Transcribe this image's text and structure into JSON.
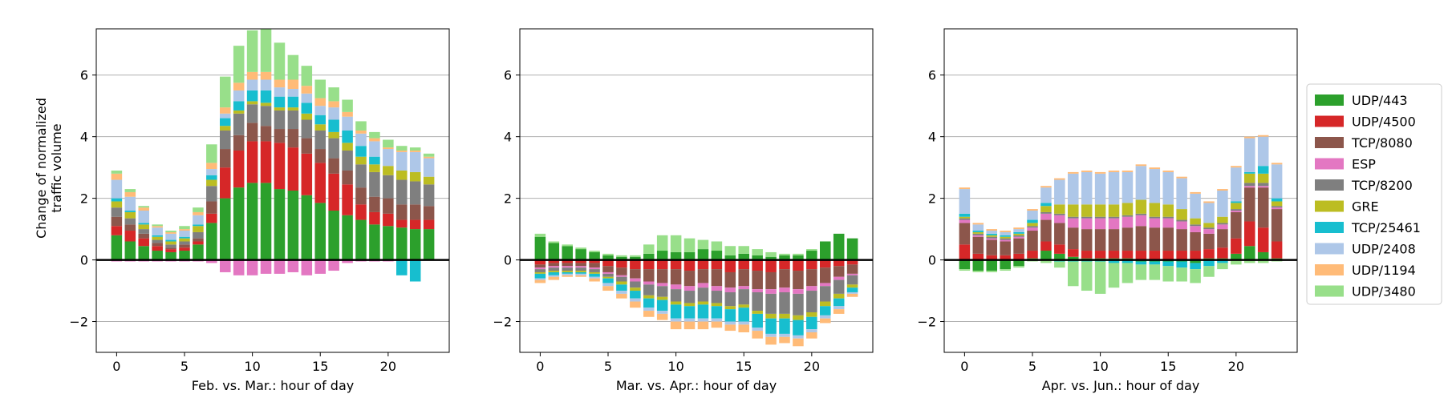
{
  "series_meta": [
    {
      "name": "UDP/443",
      "color": "#2ca02c"
    },
    {
      "name": "UDP/4500",
      "color": "#d62728"
    },
    {
      "name": "TCP/8080",
      "color": "#8c564b"
    },
    {
      "name": "ESP",
      "color": "#e377c2"
    },
    {
      "name": "TCP/8200",
      "color": "#7f7f7f"
    },
    {
      "name": "GRE",
      "color": "#bcbd22"
    },
    {
      "name": "TCP/25461",
      "color": "#17becf"
    },
    {
      "name": "UDP/2408",
      "color": "#aec7e8"
    },
    {
      "name": "UDP/1194",
      "color": "#ffbb78"
    },
    {
      "name": "UDP/3480",
      "color": "#98df8a"
    }
  ],
  "shared_ylabel": "Change of normalized\ntraffic volume",
  "chart_data": [
    {
      "type": "bar",
      "stacked": true,
      "xlabel": "Feb. vs. Mar.: hour of day",
      "ylabel": "Change of normalized traffic volume",
      "x": [
        0,
        1,
        2,
        3,
        4,
        5,
        6,
        7,
        8,
        9,
        10,
        11,
        12,
        13,
        14,
        15,
        16,
        17,
        18,
        19,
        20,
        21,
        22,
        23
      ],
      "xticks": [
        0,
        5,
        10,
        15,
        20
      ],
      "yticks": [
        -2,
        0,
        2,
        4,
        6
      ],
      "ylim": [
        -3,
        7.5
      ],
      "grid": "y",
      "series": [
        {
          "name": "UDP/443",
          "values": [
            0.8,
            0.6,
            0.45,
            0.3,
            0.25,
            0.3,
            0.5,
            1.2,
            2.0,
            2.35,
            2.5,
            2.5,
            2.3,
            2.25,
            2.1,
            1.85,
            1.6,
            1.45,
            1.3,
            1.15,
            1.1,
            1.05,
            1.0,
            1.0
          ]
        },
        {
          "name": "UDP/4500",
          "values": [
            0.3,
            0.35,
            0.25,
            0.15,
            0.1,
            0.1,
            0.1,
            0.3,
            1.0,
            1.2,
            1.35,
            1.35,
            1.5,
            1.4,
            1.35,
            1.3,
            1.2,
            1.0,
            0.5,
            0.4,
            0.4,
            0.25,
            0.3,
            0.3
          ]
        },
        {
          "name": "TCP/8080",
          "values": [
            0.3,
            0.2,
            0.15,
            0.1,
            0.05,
            0.1,
            0.1,
            0.4,
            0.6,
            0.5,
            0.6,
            0.5,
            0.45,
            0.6,
            0.5,
            0.45,
            0.5,
            0.45,
            0.55,
            0.5,
            0.5,
            0.5,
            0.5,
            0.45
          ]
        },
        {
          "name": "ESP",
          "values": [
            -0.05,
            -0.05,
            -0.05,
            -0.05,
            -0.05,
            -0.05,
            -0.05,
            -0.1,
            -0.4,
            -0.5,
            -0.5,
            -0.45,
            -0.45,
            -0.4,
            -0.5,
            -0.45,
            -0.35,
            -0.1,
            -0.05,
            -0.05,
            -0.05,
            0,
            0,
            0
          ]
        },
        {
          "name": "TCP/8200",
          "values": [
            0.3,
            0.2,
            0.15,
            0.1,
            0.1,
            0.1,
            0.2,
            0.5,
            0.6,
            0.7,
            0.6,
            0.65,
            0.6,
            0.6,
            0.6,
            0.6,
            0.65,
            0.65,
            0.75,
            0.8,
            0.75,
            0.8,
            0.75,
            0.7
          ]
        },
        {
          "name": "GRE",
          "values": [
            0.2,
            0.2,
            0.15,
            0.1,
            0.1,
            0.1,
            0.2,
            0.2,
            0.15,
            0.1,
            0.1,
            0.1,
            0.1,
            0.1,
            0.2,
            0.2,
            0.2,
            0.25,
            0.25,
            0.25,
            0.3,
            0.3,
            0.3,
            0.25
          ]
        },
        {
          "name": "TCP/25461",
          "values": [
            0.1,
            0.05,
            0.05,
            0.05,
            0.05,
            0.05,
            0.05,
            0.15,
            0.25,
            0.3,
            0.35,
            0.4,
            0.35,
            0.35,
            0.35,
            0.3,
            0.4,
            0.4,
            0.35,
            0.25,
            0,
            -0.5,
            -0.7,
            0
          ]
        },
        {
          "name": "UDP/2408",
          "values": [
            0.6,
            0.45,
            0.4,
            0.25,
            0.2,
            0.2,
            0.3,
            0.2,
            0.15,
            0.35,
            0.35,
            0.35,
            0.3,
            0.25,
            0.3,
            0.3,
            0.4,
            0.45,
            0.4,
            0.5,
            0.55,
            0.6,
            0.65,
            0.6
          ]
        },
        {
          "name": "UDP/1194",
          "values": [
            0.2,
            0.15,
            0.1,
            0.05,
            0.05,
            0.05,
            0.1,
            0.2,
            0.2,
            0.25,
            0.25,
            0.25,
            0.25,
            0.3,
            0.25,
            0.25,
            0.2,
            0.15,
            0.1,
            0.1,
            0.05,
            0.05,
            0.05,
            0.05
          ]
        },
        {
          "name": "UDP/3480",
          "values": [
            0.1,
            0.1,
            0.05,
            0.05,
            0.05,
            0.1,
            0.15,
            0.6,
            1.0,
            1.2,
            1.35,
            1.4,
            1.2,
            0.8,
            0.65,
            0.6,
            0.45,
            0.4,
            0.3,
            0.2,
            0.25,
            0.15,
            0.1,
            0.1
          ]
        }
      ]
    },
    {
      "type": "bar",
      "stacked": true,
      "xlabel": "Mar. vs. Apr.: hour of day",
      "ylabel": "",
      "x": [
        0,
        1,
        2,
        3,
        4,
        5,
        6,
        7,
        8,
        9,
        10,
        11,
        12,
        13,
        14,
        15,
        16,
        17,
        18,
        19,
        20,
        21,
        22,
        23
      ],
      "xticks": [
        0,
        5,
        10,
        15,
        20
      ],
      "yticks": [
        -2,
        0,
        2,
        4,
        6
      ],
      "ylim": [
        -3,
        7.5
      ],
      "grid": "y",
      "series": [
        {
          "name": "UDP/443",
          "values": [
            0.75,
            0.55,
            0.45,
            0.35,
            0.25,
            0.15,
            0.1,
            0.1,
            0.2,
            0.3,
            0.25,
            0.25,
            0.35,
            0.3,
            0.15,
            0.2,
            0.15,
            0.1,
            0.15,
            0.15,
            0.3,
            0.6,
            0.85,
            0.7
          ]
        },
        {
          "name": "UDP/4500",
          "values": [
            -0.15,
            -0.1,
            -0.1,
            -0.1,
            -0.1,
            -0.2,
            -0.25,
            -0.3,
            -0.3,
            -0.3,
            -0.3,
            -0.35,
            -0.3,
            -0.3,
            -0.4,
            -0.3,
            -0.35,
            -0.4,
            -0.3,
            -0.35,
            -0.3,
            -0.25,
            -0.2,
            -0.15
          ]
        },
        {
          "name": "TCP/8080",
          "values": [
            -0.1,
            -0.1,
            -0.1,
            -0.1,
            -0.15,
            -0.2,
            -0.25,
            -0.3,
            -0.4,
            -0.45,
            -0.5,
            -0.5,
            -0.45,
            -0.55,
            -0.5,
            -0.55,
            -0.6,
            -0.55,
            -0.6,
            -0.6,
            -0.55,
            -0.5,
            -0.35,
            -0.3
          ]
        },
        {
          "name": "ESP",
          "values": [
            -0.05,
            -0.05,
            -0.05,
            -0.05,
            -0.05,
            -0.05,
            -0.05,
            -0.1,
            -0.1,
            -0.1,
            -0.15,
            -0.15,
            -0.15,
            -0.15,
            -0.15,
            -0.1,
            -0.1,
            -0.15,
            -0.15,
            -0.15,
            -0.15,
            -0.1,
            -0.1,
            -0.05
          ]
        },
        {
          "name": "TCP/8200",
          "values": [
            -0.1,
            -0.1,
            -0.1,
            -0.1,
            -0.1,
            -0.1,
            -0.15,
            -0.2,
            -0.35,
            -0.35,
            -0.4,
            -0.4,
            -0.45,
            -0.4,
            -0.45,
            -0.5,
            -0.6,
            -0.65,
            -0.7,
            -0.7,
            -0.7,
            -0.5,
            -0.45,
            -0.3
          ]
        },
        {
          "name": "GRE",
          "values": [
            -0.05,
            -0.05,
            -0.05,
            -0.05,
            -0.05,
            -0.05,
            -0.1,
            -0.1,
            -0.1,
            -0.1,
            -0.1,
            -0.1,
            -0.1,
            -0.1,
            -0.1,
            -0.1,
            -0.1,
            -0.15,
            -0.15,
            -0.15,
            -0.15,
            -0.15,
            -0.15,
            -0.1
          ]
        },
        {
          "name": "TCP/25461",
          "values": [
            -0.15,
            -0.1,
            -0.05,
            -0.05,
            -0.1,
            -0.15,
            -0.2,
            -0.25,
            -0.3,
            -0.35,
            -0.45,
            -0.4,
            -0.45,
            -0.4,
            -0.4,
            -0.45,
            -0.45,
            -0.5,
            -0.5,
            -0.5,
            -0.4,
            -0.3,
            -0.25,
            -0.15
          ]
        },
        {
          "name": "UDP/2408",
          "values": [
            -0.05,
            -0.05,
            -0.05,
            -0.05,
            -0.05,
            -0.1,
            -0.1,
            -0.1,
            -0.1,
            -0.1,
            -0.1,
            -0.1,
            -0.1,
            -0.1,
            -0.1,
            -0.1,
            -0.1,
            -0.1,
            -0.1,
            -0.1,
            -0.1,
            -0.1,
            -0.1,
            -0.05
          ]
        },
        {
          "name": "UDP/1194",
          "values": [
            -0.1,
            -0.1,
            -0.05,
            -0.05,
            -0.1,
            -0.15,
            -0.15,
            -0.2,
            -0.2,
            -0.2,
            -0.25,
            -0.25,
            -0.25,
            -0.2,
            -0.2,
            -0.25,
            -0.25,
            -0.25,
            -0.2,
            -0.25,
            -0.2,
            -0.15,
            -0.15,
            -0.1
          ]
        },
        {
          "name": "UDP/3480",
          "values": [
            0.1,
            0.05,
            0.05,
            0.05,
            0.05,
            0.05,
            0.05,
            0.05,
            0.3,
            0.5,
            0.55,
            0.45,
            0.3,
            0.3,
            0.3,
            0.25,
            0.2,
            0.15,
            0.05,
            0.05,
            0.05,
            0,
            0,
            0
          ]
        }
      ]
    },
    {
      "type": "bar",
      "stacked": true,
      "xlabel": "Apr. vs. Jun.: hour of day",
      "ylabel": "",
      "x": [
        0,
        1,
        2,
        3,
        4,
        5,
        6,
        7,
        8,
        9,
        10,
        11,
        12,
        13,
        14,
        15,
        16,
        17,
        18,
        19,
        20,
        21,
        22,
        23
      ],
      "xticks": [
        0,
        5,
        10,
        15,
        20
      ],
      "yticks": [
        -2,
        0,
        2,
        4,
        6
      ],
      "ylim": [
        -3,
        7.5
      ],
      "grid": "y",
      "series": [
        {
          "name": "UDP/443",
          "values": [
            -0.3,
            -0.35,
            -0.35,
            -0.3,
            -0.2,
            0.05,
            0.3,
            0.2,
            0.1,
            0.05,
            0.05,
            0.05,
            0.05,
            -0.05,
            -0.05,
            -0.05,
            -0.05,
            -0.1,
            0.05,
            0.05,
            0.2,
            0.45,
            0.25,
            0.05
          ]
        },
        {
          "name": "UDP/4500",
          "values": [
            0.5,
            0.2,
            0.15,
            0.15,
            0.2,
            0.25,
            0.3,
            0.3,
            0.25,
            0.25,
            0.25,
            0.25,
            0.25,
            0.3,
            0.3,
            0.3,
            0.3,
            0.3,
            0.3,
            0.35,
            0.5,
            0.8,
            0.8,
            0.55
          ]
        },
        {
          "name": "TCP/8080",
          "values": [
            0.7,
            0.55,
            0.5,
            0.45,
            0.5,
            0.65,
            0.7,
            0.7,
            0.7,
            0.7,
            0.7,
            0.7,
            0.75,
            0.8,
            0.75,
            0.75,
            0.7,
            0.6,
            0.5,
            0.6,
            0.85,
            1.1,
            1.3,
            1.05
          ]
        },
        {
          "name": "ESP",
          "values": [
            0.1,
            0.05,
            0.05,
            0.05,
            0.05,
            0.1,
            0.2,
            0.25,
            0.3,
            0.35,
            0.35,
            0.35,
            0.35,
            0.35,
            0.3,
            0.3,
            0.25,
            0.2,
            0.15,
            0.15,
            0.05,
            0.05,
            0.05,
            0.05
          ]
        },
        {
          "name": "TCP/8200",
          "values": [
            0.05,
            0.05,
            0.05,
            0.05,
            0.05,
            0.05,
            0.05,
            0.05,
            0.05,
            0.05,
            0.05,
            0.05,
            0.05,
            0.05,
            0.05,
            0.05,
            0.05,
            0.05,
            0.05,
            0.05,
            0.05,
            0.1,
            0.1,
            0.05
          ]
        },
        {
          "name": "GRE",
          "values": [
            0.05,
            0.05,
            0.05,
            0.05,
            0.05,
            0.1,
            0.2,
            0.3,
            0.4,
            0.4,
            0.4,
            0.4,
            0.4,
            0.45,
            0.45,
            0.4,
            0.35,
            0.2,
            0.15,
            0.2,
            0.2,
            0.3,
            0.3,
            0.15
          ]
        },
        {
          "name": "TCP/25461",
          "values": [
            0.1,
            0.05,
            0.05,
            0.05,
            0.05,
            0.1,
            0.1,
            -0.05,
            -0.05,
            -0.05,
            -0.05,
            -0.1,
            -0.1,
            -0.1,
            -0.1,
            -0.15,
            -0.2,
            -0.2,
            -0.2,
            -0.1,
            0.05,
            0.05,
            0.25,
            0.1
          ]
        },
        {
          "name": "UDP/2408",
          "values": [
            0.8,
            0.2,
            0.1,
            0.1,
            0.1,
            0.3,
            0.5,
            0.8,
            1.0,
            1.05,
            1.0,
            1.05,
            1.0,
            1.1,
            1.1,
            1.05,
            1.0,
            0.8,
            0.65,
            0.85,
            1.1,
            1.1,
            0.95,
            1.1
          ]
        },
        {
          "name": "UDP/1194",
          "values": [
            0.05,
            0.05,
            0.05,
            0.05,
            0.05,
            0.05,
            0.05,
            0.05,
            0.05,
            0.05,
            0.05,
            0.05,
            0.05,
            0.05,
            0.05,
            0.05,
            0.05,
            0.05,
            0.05,
            0.05,
            0.05,
            0.05,
            0.05,
            0.05
          ]
        },
        {
          "name": "UDP/3480",
          "values": [
            -0.05,
            -0.05,
            -0.05,
            -0.05,
            -0.05,
            -0.05,
            -0.1,
            -0.2,
            -0.8,
            -0.95,
            -1.05,
            -0.8,
            -0.65,
            -0.5,
            -0.5,
            -0.5,
            -0.45,
            -0.45,
            -0.35,
            -0.2,
            -0.15,
            -0.1,
            -0.1,
            -0.05
          ]
        }
      ]
    }
  ]
}
